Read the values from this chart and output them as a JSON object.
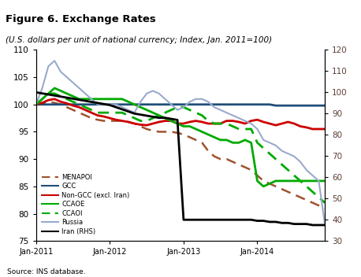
{
  "title": "Figure 6. Exchange Rates",
  "subtitle": "(U.S. dollars per unit of national currency; Index, Jan. 2011=100)",
  "title_bg_color": "#F0A800",
  "source": "Source: INS database.",
  "ylim_left": [
    75,
    110
  ],
  "ylim_right": [
    30,
    120
  ],
  "yticks_left": [
    75,
    80,
    85,
    90,
    95,
    100,
    105,
    110
  ],
  "yticks_right": [
    30,
    40,
    50,
    60,
    70,
    80,
    90,
    100,
    110,
    120
  ],
  "xtick_labels": [
    "Jan-2011",
    "Jan-2012",
    "Jan-2013",
    "Jan-2014"
  ],
  "xtick_positions": [
    0,
    12,
    24,
    36
  ],
  "MENAPOI": {
    "color": "#A0522D",
    "linestyle": "--",
    "linewidth": 1.8,
    "values": [
      100,
      100.2,
      100.5,
      100.3,
      100,
      99.5,
      99,
      98.5,
      98,
      97.5,
      97.2,
      97,
      97,
      97,
      97,
      96.8,
      96.5,
      96,
      95.5,
      95.2,
      95,
      95,
      95,
      94.8,
      94.5,
      94,
      93.5,
      93,
      91.5,
      90.5,
      90,
      90,
      89.5,
      89,
      88.5,
      88,
      87,
      86,
      85.5,
      85,
      84.5,
      84,
      83.5,
      83,
      82.5,
      82,
      81.5,
      81
    ]
  },
  "GCC": {
    "color": "#1F4E79",
    "linestyle": "-",
    "linewidth": 2.0,
    "values": [
      100,
      100,
      100,
      100,
      100,
      100,
      100,
      100,
      100,
      100,
      100,
      100,
      100,
      100,
      100,
      100,
      100,
      100,
      100,
      100,
      100,
      100,
      100,
      100,
      100,
      100,
      100,
      100,
      100,
      100,
      100,
      100,
      100,
      100,
      100,
      100,
      100,
      100,
      100,
      99.8,
      99.8,
      99.8,
      99.8,
      99.8,
      99.8,
      99.8,
      99.8,
      99.8
    ]
  },
  "NonGCC": {
    "color": "#CC0000",
    "linestyle": "-",
    "linewidth": 2.0,
    "values": [
      100,
      100.3,
      100.8,
      101,
      100.5,
      100.2,
      99.8,
      99.5,
      99,
      98.5,
      98,
      97.8,
      97.5,
      97.2,
      97,
      96.8,
      96.5,
      96.3,
      96.2,
      96.5,
      96.8,
      97,
      97,
      96.5,
      96.5,
      96.8,
      97,
      96.8,
      96.5,
      96.5,
      96.5,
      97,
      97,
      96.8,
      96.5,
      97,
      97.2,
      96.8,
      96.5,
      96.2,
      96.5,
      96.8,
      96.5,
      96,
      95.8,
      95.5,
      95.5,
      95.5
    ]
  },
  "CCAOE": {
    "color": "#00AA00",
    "linestyle": "-",
    "linewidth": 2.0,
    "values": [
      100,
      101,
      102,
      103,
      102.5,
      102,
      101.5,
      101,
      101,
      101,
      101,
      101,
      101,
      101,
      101,
      100.5,
      100,
      99.5,
      99,
      98.5,
      98,
      97.5,
      97,
      96.5,
      96,
      96,
      95.5,
      95,
      94.5,
      94,
      93.5,
      93.5,
      93,
      93,
      93.5,
      93,
      86,
      85,
      85.5,
      86,
      86,
      86,
      86,
      86,
      86,
      86,
      86,
      86
    ]
  },
  "CCAOI": {
    "color": "#00AA00",
    "linestyle": "--",
    "linewidth": 2.0,
    "values": [
      100,
      101,
      102,
      102,
      101.5,
      101,
      100.5,
      100,
      99.5,
      99,
      98.5,
      98.5,
      98.5,
      98.5,
      98.5,
      98,
      97.5,
      97,
      97,
      97.5,
      98,
      98.5,
      99,
      99.5,
      99.5,
      99,
      98.5,
      98,
      97,
      96.5,
      96.5,
      96.5,
      96,
      95.5,
      95.5,
      95.5,
      93,
      92,
      91,
      90,
      89,
      88,
      87,
      86,
      85,
      84,
      83,
      82
    ]
  },
  "Russia": {
    "color": "#99AACC",
    "linestyle": "-",
    "linewidth": 1.5,
    "values": [
      100,
      103,
      107,
      108,
      106,
      105,
      104,
      103,
      102,
      101,
      100,
      100,
      100,
      100,
      99.5,
      99,
      98.5,
      100.5,
      102,
      102.5,
      102,
      101,
      100,
      99,
      99.5,
      100.5,
      101,
      101,
      100.5,
      99.5,
      99,
      98.5,
      98,
      97.5,
      97,
      96.5,
      95.5,
      93.5,
      93,
      92.5,
      91.5,
      91,
      90.5,
      89.5,
      88,
      87,
      86,
      78
    ]
  },
  "Iran": {
    "color": "#000000",
    "linestyle": "-",
    "linewidth": 2.0,
    "values_rhs": [
      100,
      99.5,
      99,
      98.5,
      98,
      97.5,
      97,
      96.5,
      96,
      95.5,
      95,
      94.5,
      94,
      93,
      92,
      91,
      90,
      89.5,
      89,
      88.5,
      88,
      88,
      87.5,
      87,
      40,
      40,
      40,
      40,
      40,
      40,
      40,
      40,
      40,
      40,
      40,
      40,
      39.5,
      39.5,
      39,
      39,
      38.5,
      38.5,
      38,
      38,
      38,
      37.5,
      37.5,
      37.5
    ]
  },
  "legend_labels": [
    "MENAPOI",
    "GCC",
    "Non-GCC (excl. Iran)",
    "CCAOE",
    "CCAOI",
    "Russia",
    "Iran (RHS)"
  ]
}
